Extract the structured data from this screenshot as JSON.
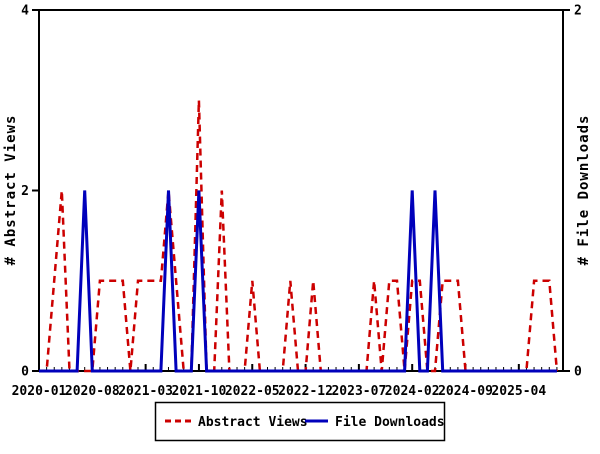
{
  "window": {
    "background": "#ffffff",
    "title": ""
  },
  "chart_data": {
    "type": "line",
    "title": "",
    "grid": false,
    "x_axis": {
      "tick_labels": [
        "2020-01",
        "2020-08",
        "2021-03",
        "2021-10",
        "2022-05",
        "2022-12",
        "2023-07",
        "2024-02",
        "2024-09",
        "2025-04"
      ],
      "major_tick_interval_months": 7,
      "minor_tick_interval_months": 1,
      "range_months": [
        "2020-01",
        "2025-09"
      ]
    },
    "y_left_axis": {
      "label": "# Abstract Views",
      "range": [
        0,
        4
      ],
      "ticks": [
        "0",
        "2",
        "4"
      ]
    },
    "y_right_axis": {
      "label": "# File Downloads",
      "range": [
        0,
        2
      ],
      "ticks": [
        "0",
        "2"
      ]
    },
    "months": [
      "2020-01",
      "2020-02",
      "2020-03",
      "2020-04",
      "2020-05",
      "2020-06",
      "2020-07",
      "2020-08",
      "2020-09",
      "2020-10",
      "2020-11",
      "2020-12",
      "2021-01",
      "2021-02",
      "2021-03",
      "2021-04",
      "2021-05",
      "2021-06",
      "2021-07",
      "2021-08",
      "2021-09",
      "2021-10",
      "2021-11",
      "2021-12",
      "2022-01",
      "2022-02",
      "2022-03",
      "2022-04",
      "2022-05",
      "2022-06",
      "2022-07",
      "2022-08",
      "2022-09",
      "2022-10",
      "2022-11",
      "2022-12",
      "2023-01",
      "2023-02",
      "2023-03",
      "2023-04",
      "2023-05",
      "2023-06",
      "2023-07",
      "2023-08",
      "2023-09",
      "2023-10",
      "2023-11",
      "2023-12",
      "2024-01",
      "2024-02",
      "2024-03",
      "2024-04",
      "2024-05",
      "2024-06",
      "2024-07",
      "2024-08",
      "2024-09",
      "2024-10",
      "2024-11",
      "2024-12",
      "2025-01",
      "2025-02",
      "2025-03",
      "2025-04",
      "2025-05",
      "2025-06",
      "2025-07",
      "2025-08",
      "2025-09"
    ],
    "series": [
      {
        "name": "Abstract Views",
        "color": "#cc0000",
        "line_style": "dashed",
        "axis": "left",
        "values": [
          0,
          0,
          1,
          2,
          0,
          0,
          0,
          0,
          1,
          1,
          1,
          1,
          0,
          1,
          1,
          1,
          1,
          2,
          1,
          0,
          0,
          3,
          0,
          0,
          2,
          0,
          0,
          0,
          1,
          0,
          0,
          0,
          0,
          1,
          0,
          0,
          1,
          0,
          0,
          0,
          0,
          0,
          0,
          0,
          1,
          0,
          1,
          1,
          0,
          1,
          1,
          0,
          0,
          1,
          1,
          1,
          0,
          0,
          0,
          0,
          0,
          0,
          0,
          0,
          0,
          1,
          1,
          1,
          0
        ]
      },
      {
        "name": "File Downloads",
        "color": "#0000bb",
        "line_style": "solid",
        "axis": "right",
        "values": [
          0,
          0,
          0,
          0,
          0,
          0,
          1,
          0,
          0,
          0,
          0,
          0,
          0,
          0,
          0,
          0,
          0,
          1,
          0,
          0,
          0,
          1,
          0,
          0,
          0,
          0,
          0,
          0,
          0,
          0,
          0,
          0,
          0,
          0,
          0,
          0,
          0,
          0,
          0,
          0,
          0,
          0,
          0,
          0,
          0,
          0,
          0,
          0,
          0,
          1,
          0,
          0,
          1,
          0,
          0,
          0,
          0,
          0,
          0,
          0,
          0,
          0,
          0,
          0,
          0,
          0,
          0,
          0,
          0
        ]
      }
    ],
    "legend": {
      "position": "bottom-center",
      "border": true,
      "entries": [
        {
          "label": "Abstract Views",
          "color": "#cc0000",
          "style": "dashed"
        },
        {
          "label": "File Downloads",
          "color": "#0000bb",
          "style": "solid"
        }
      ]
    }
  }
}
